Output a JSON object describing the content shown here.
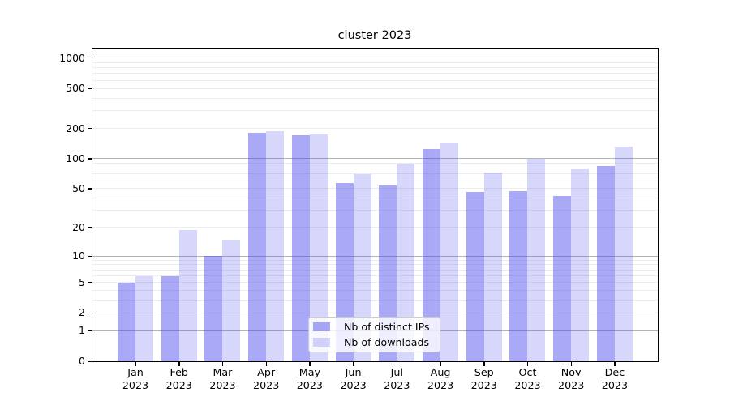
{
  "figure": {
    "title": "cluster 2023",
    "background_color": "#ffffff",
    "axis_color": "#000000"
  },
  "chart_data": {
    "type": "bar",
    "title": "cluster 2023",
    "categories": [
      {
        "month": "Jan",
        "year": "2023"
      },
      {
        "month": "Feb",
        "year": "2023"
      },
      {
        "month": "Mar",
        "year": "2023"
      },
      {
        "month": "Apr",
        "year": "2023"
      },
      {
        "month": "May",
        "year": "2023"
      },
      {
        "month": "Jun",
        "year": "2023"
      },
      {
        "month": "Jul",
        "year": "2023"
      },
      {
        "month": "Aug",
        "year": "2023"
      },
      {
        "month": "Sep",
        "year": "2023"
      },
      {
        "month": "Oct",
        "year": "2023"
      },
      {
        "month": "Nov",
        "year": "2023"
      },
      {
        "month": "Dec",
        "year": "2023"
      }
    ],
    "series": [
      {
        "name": "Nb of distinct IPs",
        "color": "rgba(68,68,238,0.46)",
        "values": [
          5,
          6,
          10,
          182,
          170,
          57,
          54,
          125,
          46,
          47,
          42,
          85
        ]
      },
      {
        "name": "Nb of downloads",
        "color": "rgba(68,68,238,0.21)",
        "values": [
          6,
          19,
          15,
          188,
          173,
          70,
          90,
          145,
          72,
          100,
          79,
          131
        ]
      }
    ],
    "y_axis": {
      "scale": "log1p",
      "ticks": [
        0,
        1,
        2,
        5,
        10,
        20,
        50,
        100,
        200,
        500,
        1000
      ],
      "range_top": 1220
    },
    "grid": {
      "enabled": true,
      "major_values": [
        1,
        10,
        100,
        1000
      ],
      "minor_multipliers": [
        2,
        3,
        4,
        5,
        6,
        7,
        8,
        9
      ],
      "major_color": "#b4b4b4",
      "minor_color": "#ececec"
    },
    "legend": {
      "position": "lower center",
      "entries": [
        "Nb of distinct IPs",
        "Nb of downloads"
      ]
    }
  }
}
